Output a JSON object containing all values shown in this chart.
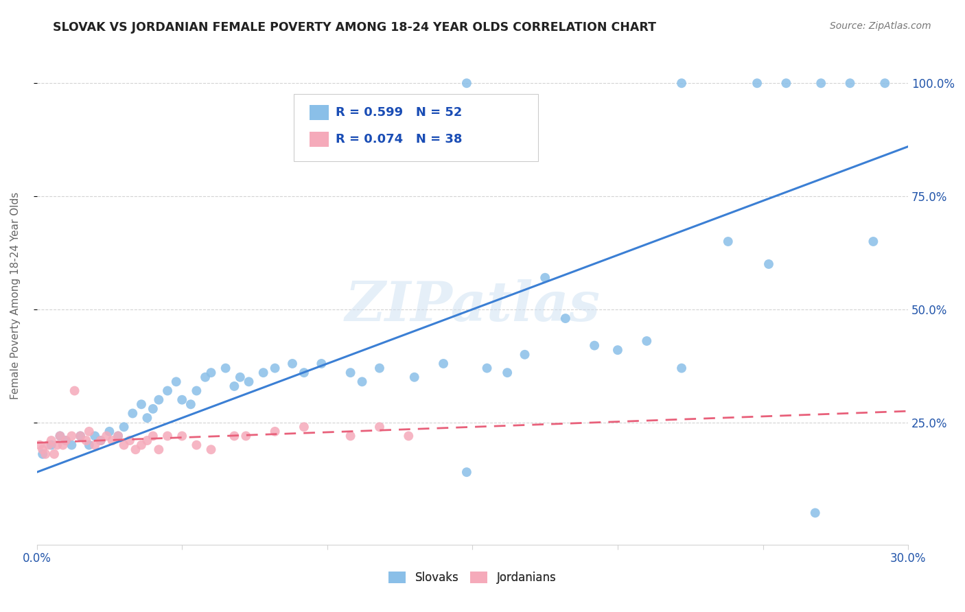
{
  "title": "SLOVAK VS JORDANIAN FEMALE POVERTY AMONG 18-24 YEAR OLDS CORRELATION CHART",
  "source": "Source: ZipAtlas.com",
  "ylabel": "Female Poverty Among 18-24 Year Olds",
  "ytick_labels": [
    "25.0%",
    "50.0%",
    "75.0%",
    "100.0%"
  ],
  "ytick_values": [
    0.25,
    0.5,
    0.75,
    1.0
  ],
  "xlim": [
    0.0,
    0.3
  ],
  "ylim": [
    -0.02,
    1.08
  ],
  "watermark": "ZIPatlas",
  "legend_slovak_R": "R = 0.599",
  "legend_slovak_N": "N = 52",
  "legend_jordan_R": "R = 0.074",
  "legend_jordan_N": "N = 38",
  "slovak_color": "#8abfe8",
  "jordan_color": "#f5aaba",
  "trendline_slovak_color": "#3b7fd4",
  "trendline_jordan_color": "#e8607a",
  "background_color": "#ffffff",
  "slovak_scatter_x": [
    0.002,
    0.005,
    0.008,
    0.01,
    0.012,
    0.015,
    0.018,
    0.02,
    0.022,
    0.025,
    0.028,
    0.03,
    0.033,
    0.036,
    0.038,
    0.04,
    0.042,
    0.045,
    0.048,
    0.05,
    0.053,
    0.055,
    0.058,
    0.06,
    0.065,
    0.068,
    0.07,
    0.073,
    0.078,
    0.082,
    0.088,
    0.092,
    0.098,
    0.108,
    0.112,
    0.118,
    0.13,
    0.14,
    0.148,
    0.155,
    0.162,
    0.168,
    0.175,
    0.182,
    0.192,
    0.2,
    0.21,
    0.222,
    0.238,
    0.252,
    0.268,
    0.288
  ],
  "slovak_scatter_y": [
    0.18,
    0.2,
    0.22,
    0.21,
    0.2,
    0.22,
    0.2,
    0.22,
    0.21,
    0.23,
    0.22,
    0.24,
    0.27,
    0.29,
    0.26,
    0.28,
    0.3,
    0.32,
    0.34,
    0.3,
    0.29,
    0.32,
    0.35,
    0.36,
    0.37,
    0.33,
    0.35,
    0.34,
    0.36,
    0.37,
    0.38,
    0.36,
    0.38,
    0.36,
    0.34,
    0.37,
    0.35,
    0.38,
    0.14,
    0.37,
    0.36,
    0.4,
    0.57,
    0.48,
    0.42,
    0.41,
    0.43,
    0.37,
    0.65,
    0.6,
    0.05,
    0.65
  ],
  "slovak_top_x": [
    0.148,
    0.222,
    0.248,
    0.258,
    0.27,
    0.28,
    0.292
  ],
  "slovak_top_y": [
    1.0,
    1.0,
    1.0,
    1.0,
    1.0,
    1.0,
    1.0
  ],
  "jordan_scatter_x": [
    0.001,
    0.002,
    0.003,
    0.004,
    0.005,
    0.006,
    0.007,
    0.008,
    0.009,
    0.01,
    0.012,
    0.013,
    0.015,
    0.017,
    0.018,
    0.02,
    0.022,
    0.024,
    0.026,
    0.028,
    0.03,
    0.032,
    0.034,
    0.036,
    0.038,
    0.04,
    0.042,
    0.045,
    0.05,
    0.055,
    0.06,
    0.068,
    0.072,
    0.082,
    0.092,
    0.108,
    0.118,
    0.128
  ],
  "jordan_scatter_y": [
    0.2,
    0.19,
    0.18,
    0.2,
    0.21,
    0.18,
    0.2,
    0.22,
    0.2,
    0.21,
    0.22,
    0.32,
    0.22,
    0.21,
    0.23,
    0.2,
    0.21,
    0.22,
    0.21,
    0.22,
    0.2,
    0.21,
    0.19,
    0.2,
    0.21,
    0.22,
    0.19,
    0.22,
    0.22,
    0.2,
    0.19,
    0.22,
    0.22,
    0.23,
    0.24,
    0.22,
    0.24,
    0.22
  ],
  "trendline_slovak_x0": 0.0,
  "trendline_slovak_y0": 0.14,
  "trendline_slovak_x1": 0.3,
  "trendline_slovak_y1": 0.86,
  "trendline_jordan_x0": 0.0,
  "trendline_jordan_y0": 0.205,
  "trendline_jordan_x1": 0.3,
  "trendline_jordan_y1": 0.275
}
